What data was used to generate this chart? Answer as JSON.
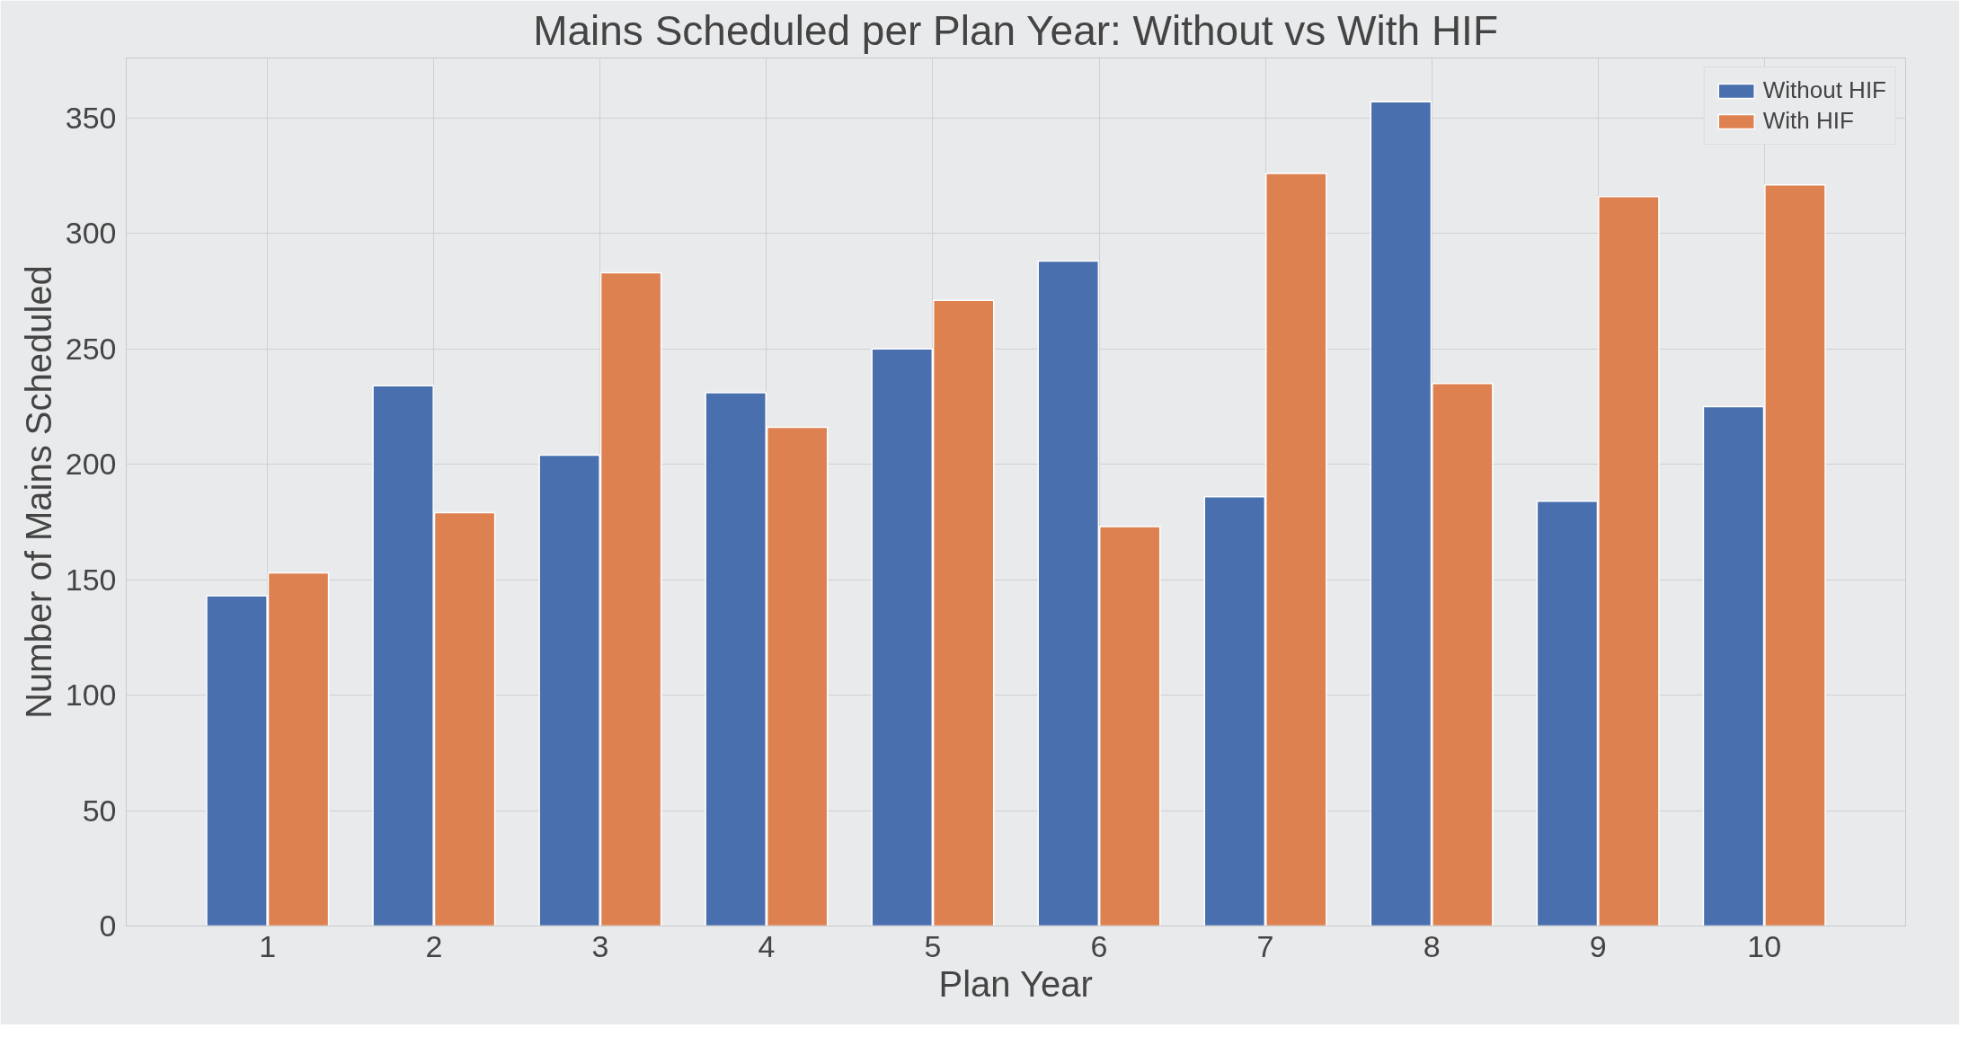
{
  "chart_data": {
    "type": "bar",
    "title": "Mains Scheduled per Plan Year: Without vs With HIF",
    "xlabel": "Plan Year",
    "ylabel": "Number of Mains Scheduled",
    "categories": [
      "1",
      "2",
      "3",
      "4",
      "5",
      "6",
      "7",
      "8",
      "9",
      "10"
    ],
    "series": [
      {
        "name": "Without HIF",
        "color": "#4a6fae",
        "values": [
          143,
          234,
          204,
          231,
          250,
          288,
          186,
          357,
          184,
          225
        ]
      },
      {
        "name": "With HIF",
        "color": "#dd8150",
        "values": [
          153,
          179,
          283,
          216,
          271,
          173,
          326,
          235,
          316,
          321
        ]
      }
    ],
    "ylim": [
      0,
      376
    ],
    "yticks": [
      0,
      50,
      100,
      150,
      200,
      250,
      300,
      350
    ],
    "grid": true,
    "legend": "top right"
  }
}
